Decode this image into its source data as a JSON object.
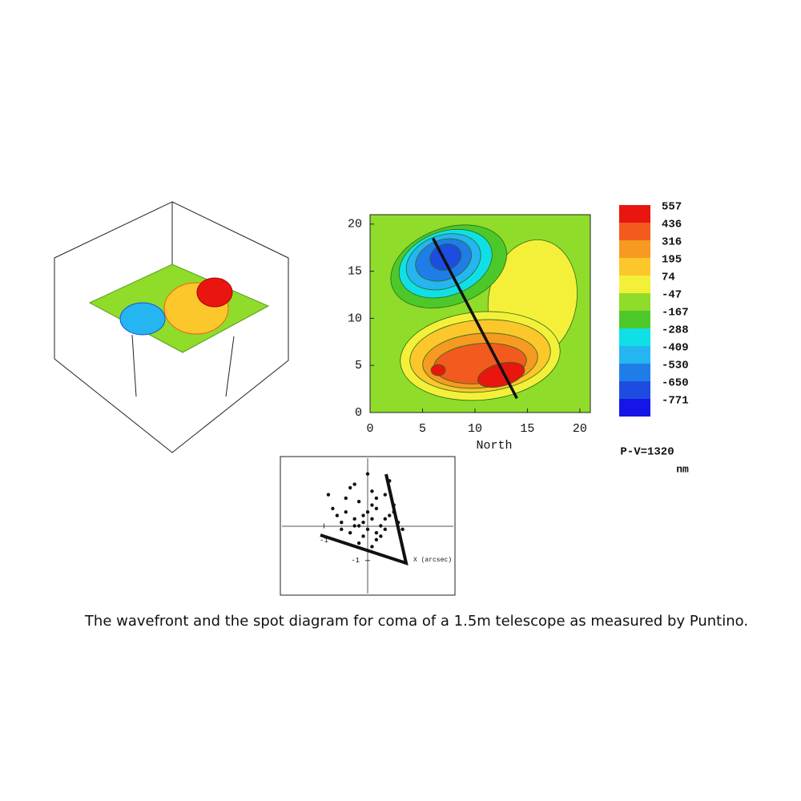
{
  "chart_data": [
    {
      "type": "contour",
      "xlabel": "North",
      "xlim": [
        0,
        21
      ],
      "ylim": [
        0,
        21
      ],
      "xticks": [
        0,
        5,
        10,
        15,
        20
      ],
      "yticks": [
        0,
        5,
        10,
        15,
        20
      ],
      "levels": [
        557,
        436,
        316,
        195,
        74,
        -47,
        -167,
        -288,
        -409,
        -530,
        -650,
        -771
      ],
      "level_colors": [
        "#e8160f",
        "#f25a1e",
        "#f79a22",
        "#fbc72b",
        "#f4f03a",
        "#8fdc2a",
        "#4dc82a",
        "#10e0e6",
        "#25b5f0",
        "#1f7de8",
        "#1d4de0",
        "#1515e8"
      ],
      "trace": {
        "x": [
          6,
          14
        ],
        "y": [
          18.5,
          1.5
        ]
      },
      "pv_label": "P-V=1320",
      "pv_unit": "nm"
    },
    {
      "type": "scatter",
      "xlabel": "X (arcsec)",
      "xlim": [
        -2,
        2
      ],
      "ylim": [
        -2,
        2
      ],
      "xticks": [
        -1
      ],
      "yticks": [
        -1
      ],
      "color": "#111111",
      "x": [
        -0.3,
        0.1,
        -0.5,
        0.4,
        -0.1,
        0.2,
        -0.6,
        0.5,
        -0.2,
        0.0,
        0.3,
        -0.4,
        0.6,
        -0.8,
        0.1,
        -0.3,
        0.2,
        -0.1,
        0.4,
        -0.5,
        0.0,
        0.7,
        -0.2,
        0.3,
        -0.7,
        0.1,
        -0.4,
        0.5,
        0.2,
        -0.1,
        -0.9,
        0.8,
        0.0,
        -0.3,
        0.4,
        -0.6,
        0.2,
        0.1,
        -0.2,
        0.6
      ],
      "y": [
        0.0,
        0.2,
        0.4,
        -0.1,
        -0.3,
        0.5,
        0.1,
        0.3,
        0.7,
        -0.1,
        0.0,
        -0.2,
        0.6,
        0.5,
        1.0,
        1.2,
        -0.4,
        0.3,
        0.9,
        0.8,
        0.4,
        0.1,
        -0.5,
        -0.3,
        0.3,
        0.6,
        1.1,
        1.3,
        -0.2,
        0.1,
        0.9,
        -0.1,
        1.5,
        0.2,
        0.2,
        -0.1,
        0.8,
        -0.6,
        0.0,
        0.4
      ]
    }
  ],
  "caption": "The wavefront and the spot diagram for coma of a 1.5m telescope as measured by Puntino."
}
